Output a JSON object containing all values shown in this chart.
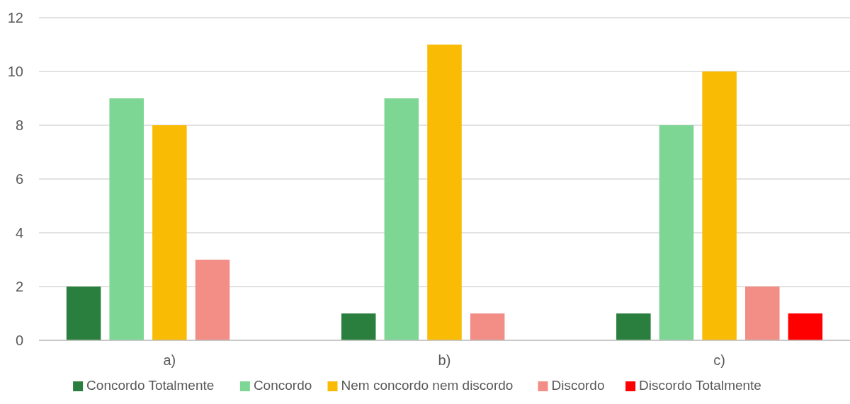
{
  "chart_data": {
    "type": "bar",
    "categories": [
      "a)",
      "b)",
      "c)"
    ],
    "series": [
      {
        "name": "Concordo Totalmente",
        "color": "#2a7f3e",
        "values": [
          2,
          1,
          1
        ]
      },
      {
        "name": "Concordo",
        "color": "#7dd694",
        "values": [
          9,
          9,
          8
        ]
      },
      {
        "name": "Nem concordo nem discordo",
        "color": "#fabb05",
        "values": [
          8,
          11,
          10
        ]
      },
      {
        "name": "Discordo",
        "color": "#f28e86",
        "values": [
          3,
          1,
          2
        ]
      },
      {
        "name": "Discordo Totalmente",
        "color": "#ff0000",
        "values": [
          0,
          0,
          1
        ]
      }
    ],
    "ylim": [
      0,
      12
    ],
    "yticks": [
      0,
      2,
      4,
      6,
      8,
      10,
      12
    ],
    "grid": "y",
    "legend": "bottom"
  }
}
